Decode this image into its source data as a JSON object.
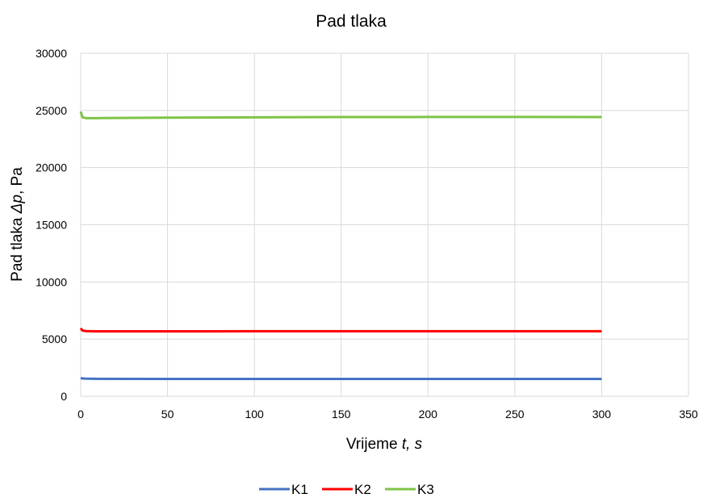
{
  "chart_data": {
    "type": "line",
    "title": "Pad tlaka",
    "xlabel": {
      "prefix": "Vrijeme ",
      "symbol": "t",
      "suffix": ", s"
    },
    "ylabel": {
      "prefix": "Pad tlaka ",
      "symbol": "Δp",
      "suffix": ", Pa"
    },
    "xlim": [
      0,
      350
    ],
    "ylim": [
      0,
      30000
    ],
    "xticks": [
      0,
      50,
      100,
      150,
      200,
      250,
      300,
      350
    ],
    "yticks": [
      0,
      5000,
      10000,
      15000,
      20000,
      25000,
      30000
    ],
    "grid": true,
    "legend_position": "bottom",
    "series": [
      {
        "name": "K1",
        "color": "#4472C4",
        "x": [
          0,
          1,
          3,
          10,
          50,
          100,
          150,
          200,
          250,
          300
        ],
        "y": [
          1600,
          1560,
          1540,
          1530,
          1520,
          1520,
          1520,
          1520,
          1520,
          1520
        ]
      },
      {
        "name": "K2",
        "color": "#FF0000",
        "x": [
          0,
          1,
          3,
          10,
          50,
          100,
          150,
          200,
          250,
          300
        ],
        "y": [
          5950,
          5750,
          5700,
          5680,
          5680,
          5690,
          5690,
          5690,
          5690,
          5690
        ]
      },
      {
        "name": "K3",
        "color": "#7DC447",
        "x": [
          0,
          1,
          3,
          10,
          50,
          100,
          150,
          200,
          250,
          300
        ],
        "y": [
          24900,
          24400,
          24330,
          24330,
          24370,
          24400,
          24420,
          24430,
          24430,
          24420
        ]
      }
    ]
  }
}
